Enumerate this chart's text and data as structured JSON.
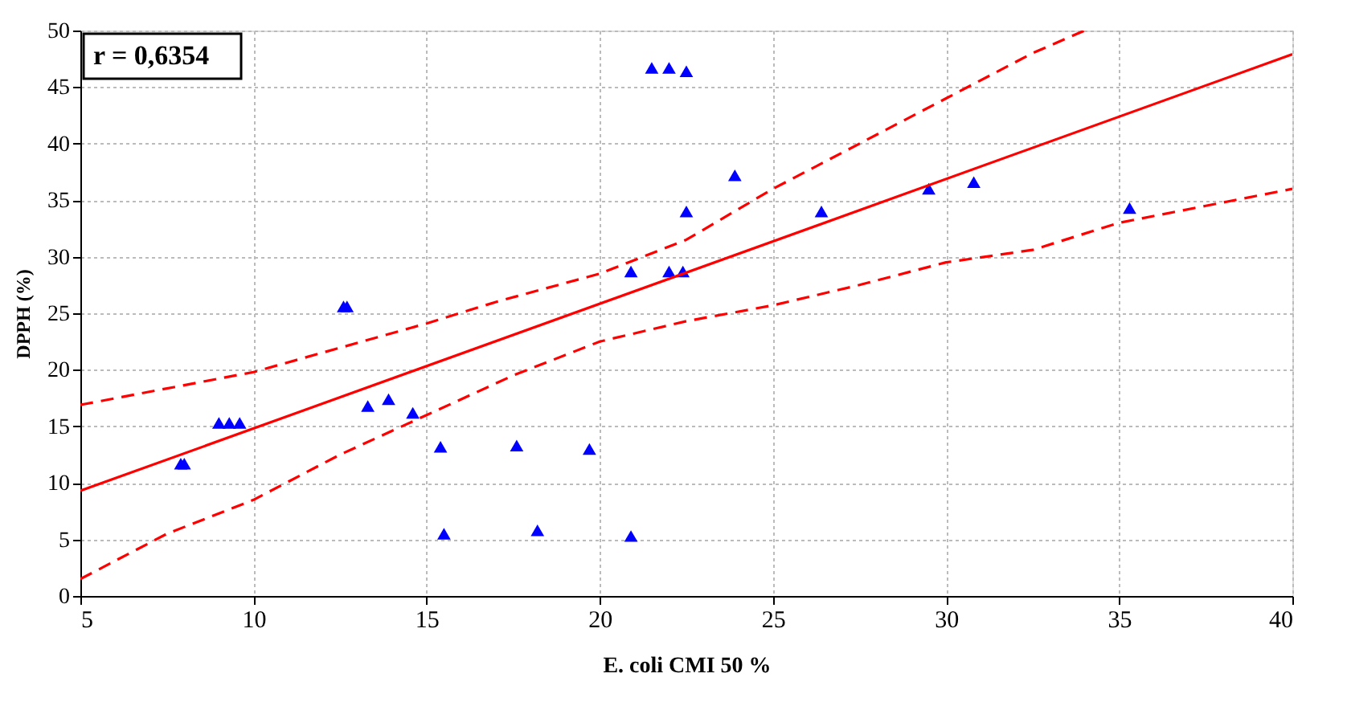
{
  "chart_data": {
    "type": "scatter",
    "xlabel": "E. coli CMI 50 %",
    "ylabel": "DPPH (%)",
    "annotations": [
      "r = 0,6354"
    ],
    "xlim": [
      5,
      40
    ],
    "xticks": [
      5,
      10,
      15,
      20,
      25,
      30,
      35,
      40
    ],
    "ylim": [
      0,
      50
    ],
    "yticks": [
      0,
      5,
      10,
      15,
      20,
      25,
      30,
      35,
      40,
      45,
      50
    ],
    "grid": true,
    "series": [
      {
        "marker": "triangle",
        "color": "#0000ff",
        "x": [
          7.9,
          8.0,
          9.0,
          9.3,
          9.6,
          12.6,
          12.7,
          13.3,
          13.9,
          14.6,
          15.4,
          15.5,
          17.6,
          18.2,
          19.7,
          20.9,
          20.9,
          21.5,
          22.0,
          22.0,
          22.4,
          22.5,
          22.5,
          23.9,
          26.4,
          29.5,
          30.8,
          35.3
        ],
        "values": [
          11.7,
          11.7,
          15.3,
          15.3,
          15.3,
          25.6,
          25.6,
          16.8,
          17.4,
          16.2,
          13.2,
          5.5,
          13.3,
          5.8,
          13.0,
          28.7,
          5.3,
          46.7,
          46.7,
          28.7,
          28.7,
          46.4,
          34.0,
          37.2,
          34.0,
          36.0,
          36.6,
          34.3
        ]
      },
      {
        "type": "line",
        "line_style": "solid",
        "color": "#ff0000",
        "x": [
          5,
          40
        ],
        "values": [
          9.3,
          47.9
        ]
      },
      {
        "type": "line",
        "line_style": "dashed",
        "color": "#ff0000",
        "x": [
          5,
          10,
          15,
          17,
          20,
          22.5,
          25,
          27.5,
          30,
          32.5,
          34
        ],
        "values": [
          16.9,
          19.8,
          24.1,
          26,
          28.5,
          31.5,
          36,
          40,
          44,
          48,
          50
        ]
      },
      {
        "type": "line",
        "line_style": "dashed",
        "color": "#ff0000",
        "x": [
          5,
          7.5,
          10,
          12.5,
          15,
          17.5,
          20,
          22.5,
          25,
          27.5,
          30,
          32.5,
          35,
          37.5,
          40
        ],
        "values": [
          1.5,
          5.5,
          8.5,
          12.5,
          16,
          19.5,
          22.5,
          24.3,
          25.7,
          27.5,
          29.5,
          30.6,
          33,
          34.5,
          36
        ]
      }
    ]
  }
}
